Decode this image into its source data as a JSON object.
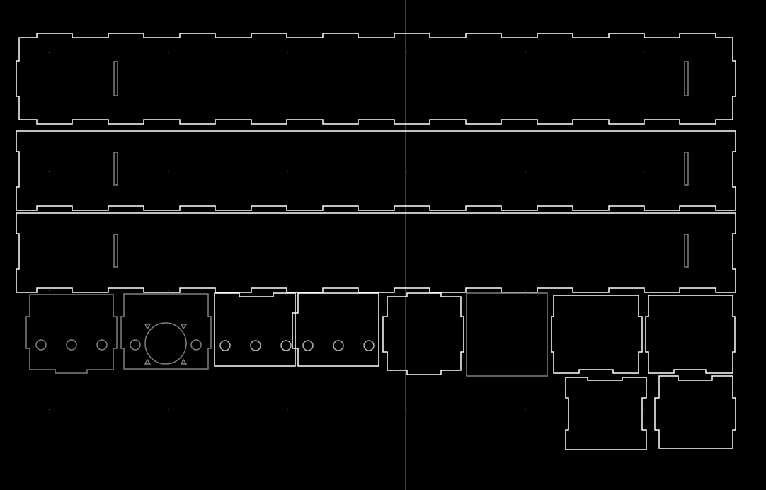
{
  "colors": {
    "background": "#000000",
    "part_outline": "#ffffff",
    "inactive_outline": "#808080",
    "guide_line": "#4d4d4d",
    "grid_dot": "#9a9a9a"
  },
  "parts": [
    {
      "id": "side-panel-top",
      "kind": "long-panel"
    },
    {
      "id": "side-panel-middle",
      "kind": "long-panel"
    },
    {
      "id": "side-panel-bottom",
      "kind": "long-panel"
    },
    {
      "id": "end-plate-three-holes",
      "kind": "end-plate",
      "state": "inactive"
    },
    {
      "id": "end-plate-round-cutout",
      "kind": "end-plate",
      "state": "inactive"
    },
    {
      "id": "end-plate-holes-a",
      "kind": "end-plate"
    },
    {
      "id": "end-plate-holes-b",
      "kind": "end-plate"
    },
    {
      "id": "small-tabbed-panel",
      "kind": "panel"
    },
    {
      "id": "plain-square-panel",
      "kind": "panel",
      "state": "inactive"
    },
    {
      "id": "tabbed-panel-upper-left",
      "kind": "panel"
    },
    {
      "id": "tabbed-panel-upper-right",
      "kind": "panel"
    },
    {
      "id": "tabbed-panel-lower-left",
      "kind": "panel"
    },
    {
      "id": "tabbed-panel-lower-right",
      "kind": "panel"
    }
  ]
}
